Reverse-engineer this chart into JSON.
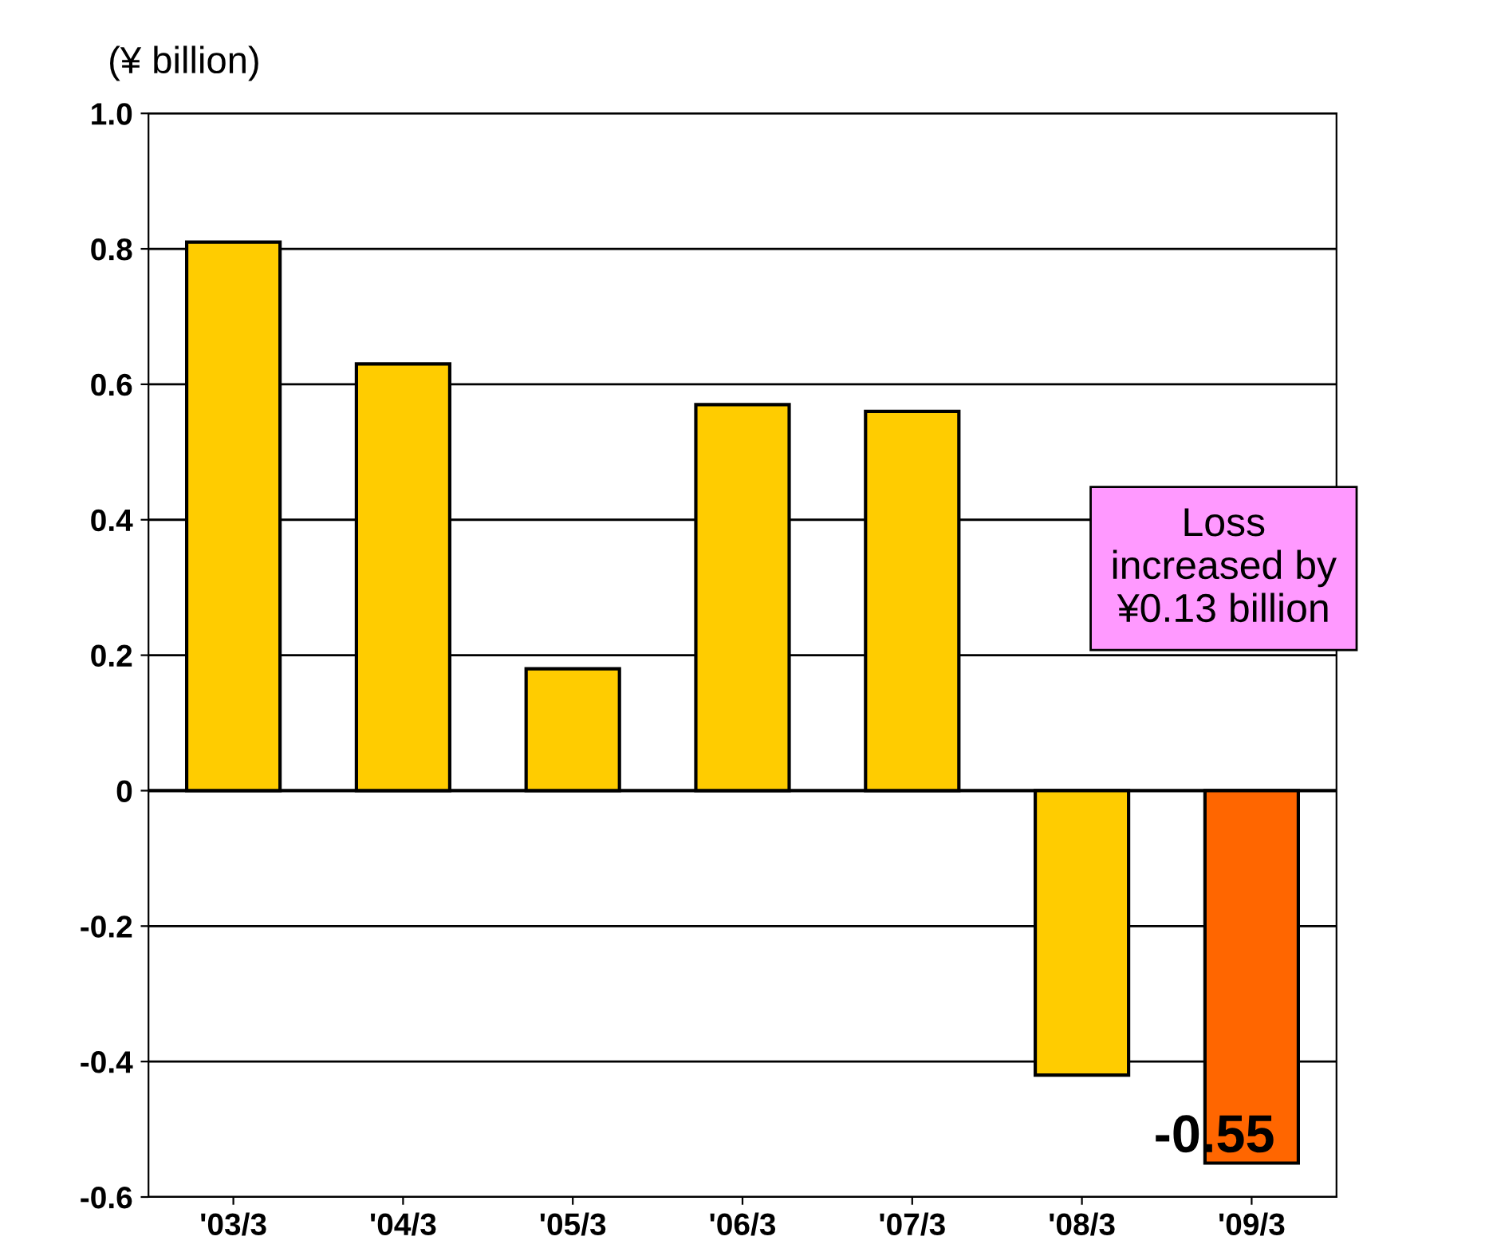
{
  "chart_data": {
    "type": "bar",
    "ylabel": "(¥ billion)",
    "categories": [
      "'03/3",
      "'04/3",
      "'05/3",
      "'06/3",
      "'07/3",
      "'08/3",
      "'09/3"
    ],
    "values": [
      0.81,
      0.63,
      0.18,
      0.57,
      0.56,
      -0.42,
      -0.55
    ],
    "colors": [
      "#ffcc00",
      "#ffcc00",
      "#ffcc00",
      "#ffcc00",
      "#ffcc00",
      "#ffcc00",
      "#ff6600"
    ],
    "value_labels": [
      null,
      null,
      null,
      null,
      null,
      null,
      "-0.55"
    ],
    "ylim": [
      -0.6,
      1.0
    ],
    "yticks": [
      -0.6,
      -0.4,
      -0.2,
      0,
      0.2,
      0.4,
      0.6,
      0.8,
      {
        "value": 1.0,
        "label": "1.0"
      }
    ],
    "grid": "y",
    "annotations": [
      "Loss\nincreased by\n¥0.13 billion"
    ]
  }
}
